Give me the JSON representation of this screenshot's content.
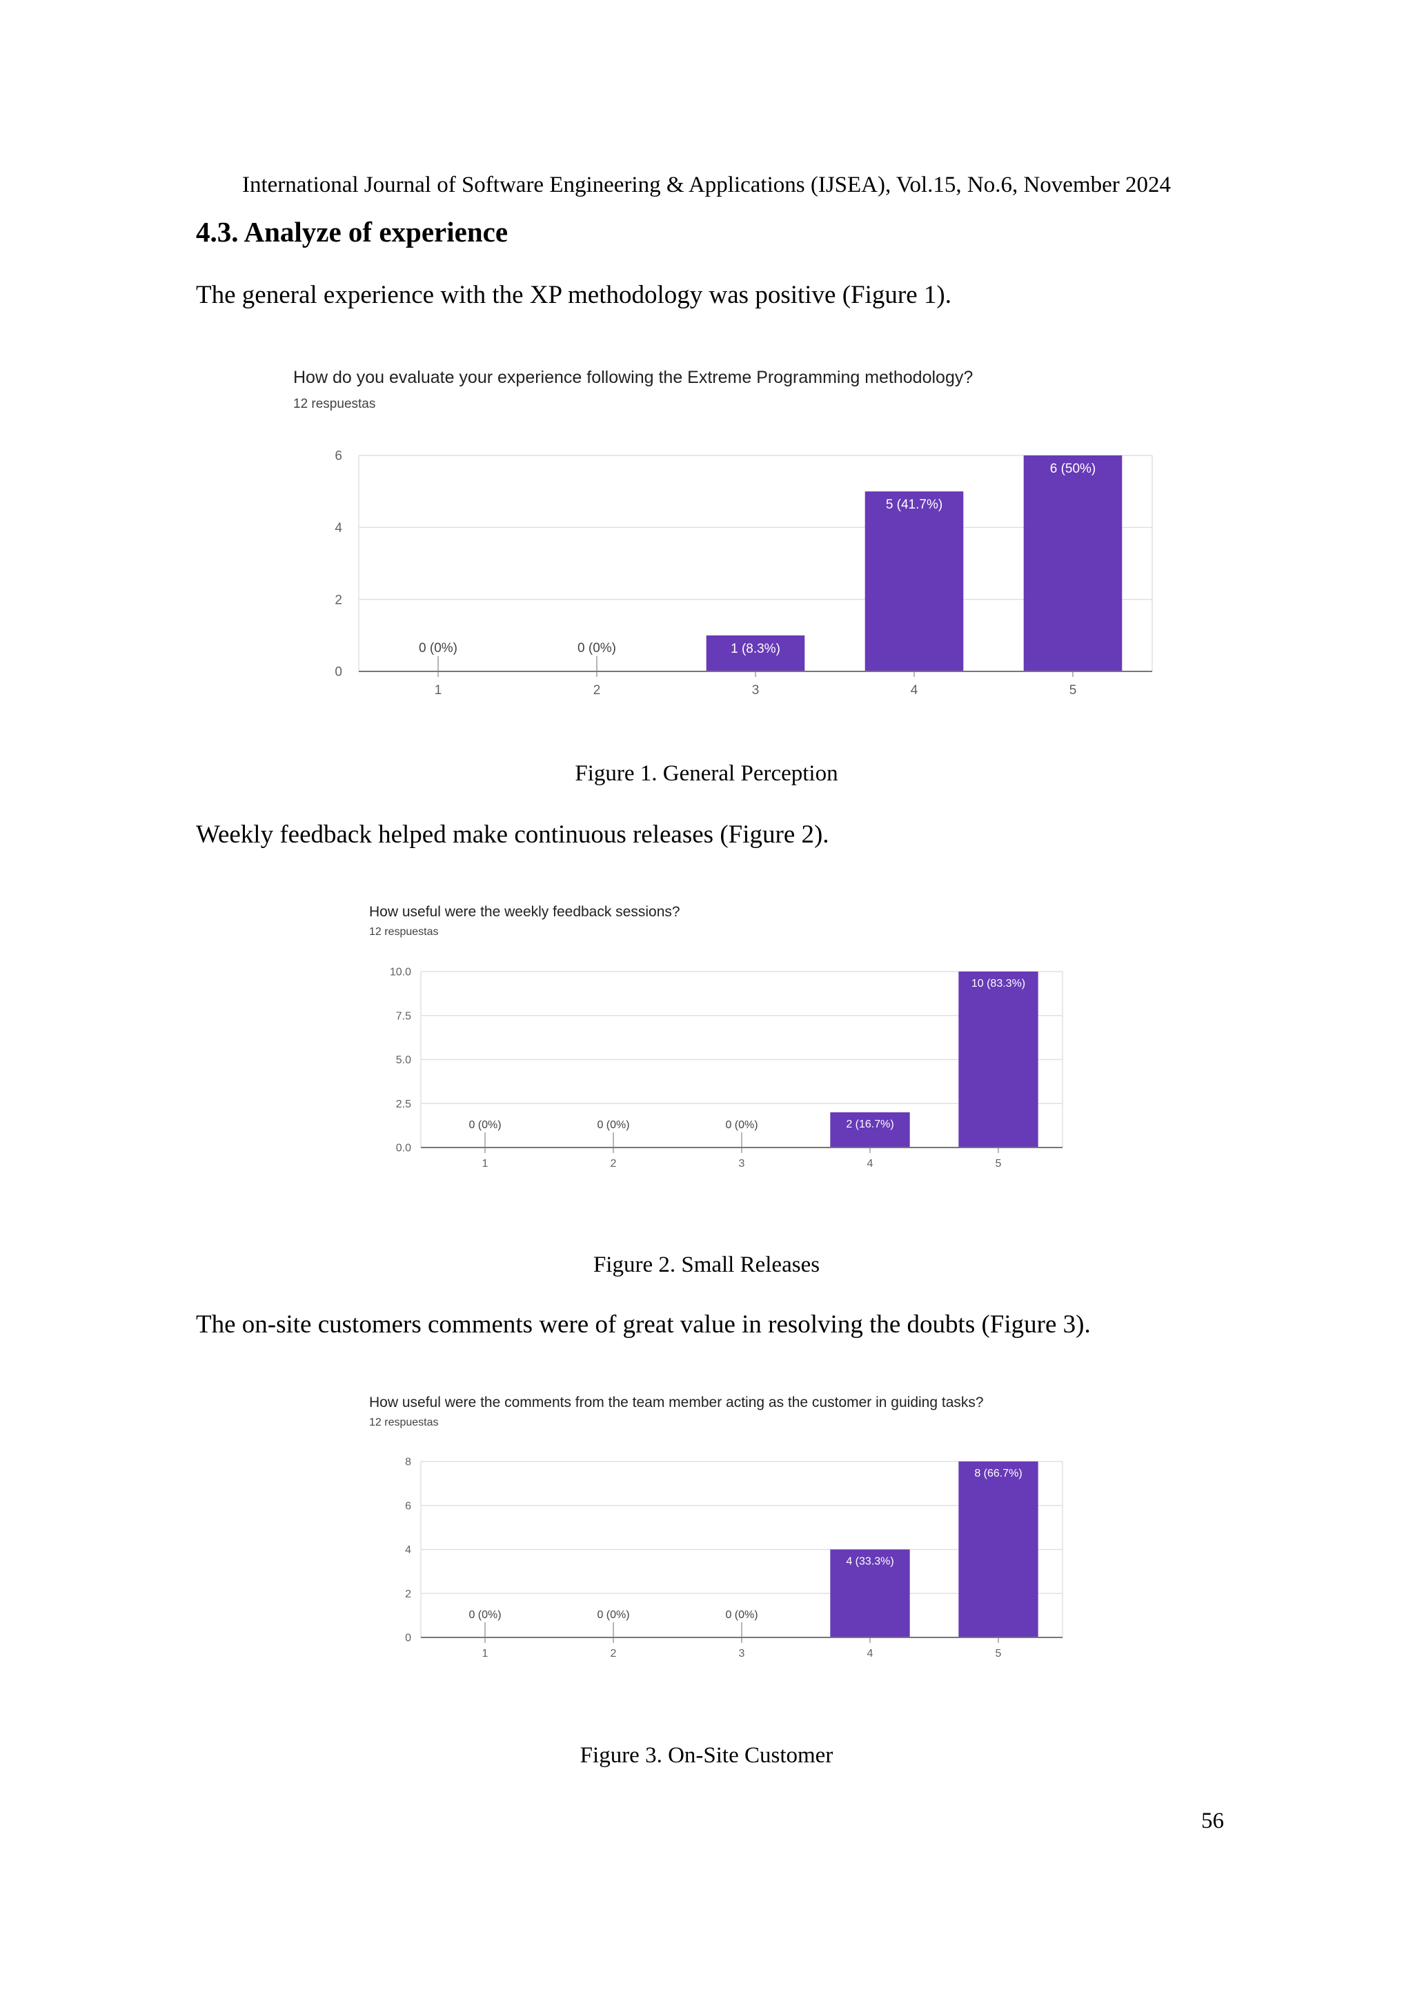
{
  "header": "International Journal of Software Engineering & Applications (IJSEA), Vol.15, No.6, November 2024",
  "section_title": "4.3.  Analyze of experience",
  "paragraphs": [
    "The general experience with the XP methodology was positive (Figure 1).",
    "Weekly feedback helped make continuous releases (Figure 2).",
    "The on-site customers comments were of great value in resolving the doubts (Figure 3)."
  ],
  "captions": [
    "Figure 1.  General Perception",
    "Figure 2.  Small Releases",
    "Figure 3.  On-Site Customer"
  ],
  "page_number": "56",
  "colors": {
    "bar": "#673ab7",
    "grid": "#e0e0e0",
    "axis": "#9e9e9e",
    "tick_text": "#616161"
  },
  "chart_data": [
    {
      "type": "bar",
      "title": "How do you evaluate your experience following the Extreme Programming methodology?",
      "subtitle": "12 respuestas",
      "categories": [
        "1",
        "2",
        "3",
        "4",
        "5"
      ],
      "values": [
        0,
        0,
        1,
        5,
        6
      ],
      "data_labels": [
        "0 (0%)",
        "0 (0%)",
        "1 (8.3%)",
        "5 (41.7%)",
        "6 (50%)"
      ],
      "yticks": [
        "0",
        "2",
        "4",
        "6"
      ],
      "ylim": [
        0,
        6
      ],
      "grid": true
    },
    {
      "type": "bar",
      "title": "How useful were the weekly feedback sessions?",
      "subtitle": "12 respuestas",
      "categories": [
        "1",
        "2",
        "3",
        "4",
        "5"
      ],
      "values": [
        0,
        0,
        0,
        2,
        10
      ],
      "data_labels": [
        "0 (0%)",
        "0 (0%)",
        "0 (0%)",
        "2 (16.7%)",
        "10 (83.3%)"
      ],
      "yticks": [
        "0.0",
        "2.5",
        "5.0",
        "7.5",
        "10.0"
      ],
      "ylim": [
        0,
        10
      ],
      "grid": true
    },
    {
      "type": "bar",
      "title": "How useful were the comments from the team member acting as the customer in guiding tasks?",
      "subtitle": "12 respuestas",
      "categories": [
        "1",
        "2",
        "3",
        "4",
        "5"
      ],
      "values": [
        0,
        0,
        0,
        4,
        8
      ],
      "data_labels": [
        "0 (0%)",
        "0 (0%)",
        "0 (0%)",
        "4 (33.3%)",
        "8 (66.7%)"
      ],
      "yticks": [
        "0",
        "2",
        "4",
        "6",
        "8"
      ],
      "ylim": [
        0,
        8
      ],
      "grid": true
    }
  ]
}
